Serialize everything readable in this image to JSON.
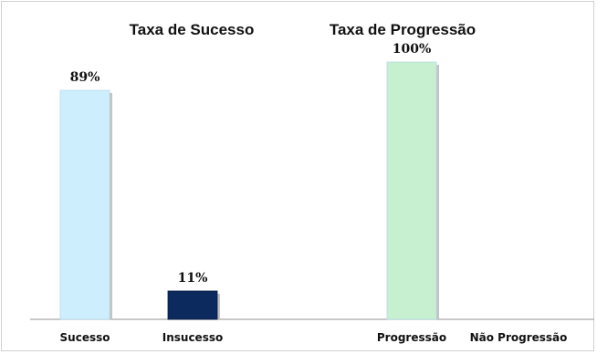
{
  "chart_data": [
    {
      "type": "bar",
      "title": "Taxa de Sucesso",
      "categories": [
        "Sucesso",
        "Insucesso"
      ],
      "values": [
        89,
        11
      ],
      "data_labels": [
        "89%",
        "11%"
      ],
      "colors": [
        "#cdeefc",
        "#0d2a5e"
      ],
      "ylim": [
        0,
        100
      ],
      "grid": false,
      "legend": "none"
    },
    {
      "type": "bar",
      "title": "Taxa de Progressão",
      "categories": [
        "Progressão",
        "Não Progressão"
      ],
      "values": [
        100,
        0
      ],
      "data_labels": [
        "100%",
        ""
      ],
      "colors": [
        "#c6f0cf",
        "#c6f0cf"
      ],
      "ylim": [
        0,
        100
      ],
      "grid": false,
      "legend": "none"
    }
  ]
}
